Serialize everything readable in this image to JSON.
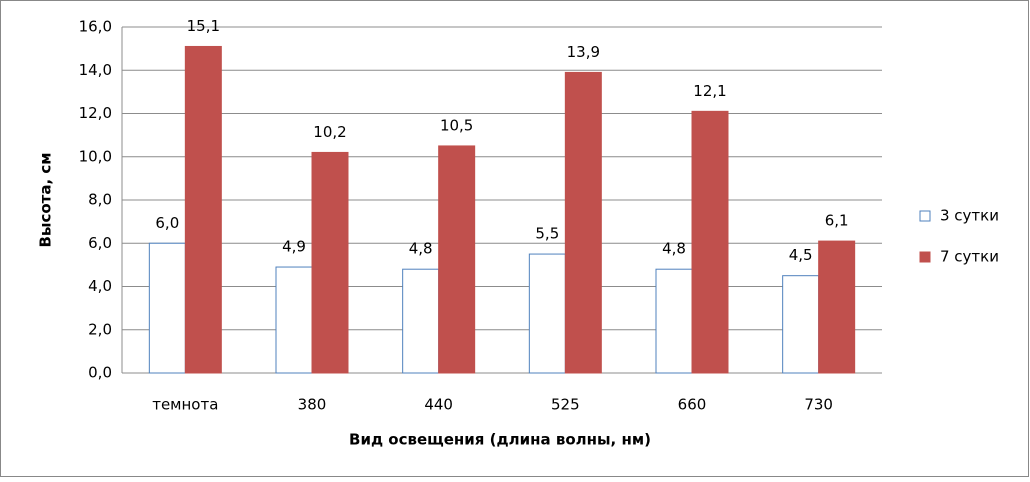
{
  "chart_data": {
    "type": "bar",
    "categories": [
      "темнота",
      "380",
      "440",
      "525",
      "660",
      "730"
    ],
    "series": [
      {
        "name": "3 сутки",
        "color": "#4f81bd",
        "fill": "#ffffff",
        "values": [
          6.0,
          4.9,
          4.8,
          5.5,
          4.8,
          4.5
        ],
        "value_labels": [
          "6,0",
          "4,9",
          "4,8",
          "5,5",
          "4,8",
          "4,5"
        ]
      },
      {
        "name": "7 сутки",
        "color": "#c0504d",
        "fill": "#c0504d",
        "values": [
          15.1,
          10.2,
          10.5,
          13.9,
          12.1,
          6.1
        ],
        "value_labels": [
          "15,1",
          "10,2",
          "10,5",
          "13,9",
          "12,1",
          "6,1"
        ]
      }
    ],
    "x_label": "Вид освещения (длина волны, нм)",
    "y_label": "Высота, см",
    "ylim": [
      0,
      16
    ],
    "yticks": [
      {
        "value": 0,
        "label": "0,0"
      },
      {
        "value": 2,
        "label": "2,0"
      },
      {
        "value": 4,
        "label": "4,0"
      },
      {
        "value": 6,
        "label": "6,0"
      },
      {
        "value": 8,
        "label": "8,0"
      },
      {
        "value": 10,
        "label": "10,0"
      },
      {
        "value": 12,
        "label": "12,0"
      },
      {
        "value": 14,
        "label": "14,0"
      },
      {
        "value": 16,
        "label": "16,0"
      }
    ],
    "grid": true,
    "legend": "right"
  }
}
